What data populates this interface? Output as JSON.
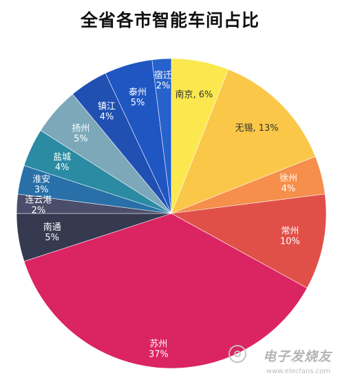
{
  "chart_data": {
    "type": "pie",
    "title": "全省各市智能车间占比",
    "slices": [
      {
        "name": "南京",
        "value": 6,
        "label": "南京, 6%",
        "color": "#FBE84E",
        "text_color": "#333333",
        "lines": [
          "南京, 6%"
        ]
      },
      {
        "name": "无锡",
        "value": 13,
        "label": "无锡, 13%",
        "color": "#FAC748",
        "text_color": "#333333",
        "lines": [
          "无锡, 13%"
        ]
      },
      {
        "name": "徐州",
        "value": 4,
        "label": "徐州 4%",
        "color": "#F58F4B",
        "text_color": "#ffffff",
        "lines": [
          "徐州",
          "4%"
        ]
      },
      {
        "name": "常州",
        "value": 10,
        "label": "常州 10%",
        "color": "#E05049",
        "text_color": "#ffffff",
        "lines": [
          "常州",
          "10%"
        ]
      },
      {
        "name": "苏州",
        "value": 37,
        "label": "苏州 37%",
        "color": "#DB2462",
        "text_color": "#ffffff",
        "lines": [
          "苏州",
          "37%"
        ]
      },
      {
        "name": "南通",
        "value": 5,
        "label": "南通 5%",
        "color": "#363A50",
        "text_color": "#ffffff",
        "lines": [
          "南通",
          "5%"
        ]
      },
      {
        "name": "连云港",
        "value": 2,
        "label": "连云港 2%",
        "color": "#4A4E6B",
        "text_color": "#ffffff",
        "lines": [
          "连云港",
          "2%"
        ]
      },
      {
        "name": "淮安",
        "value": 3,
        "label": "淮安 3%",
        "color": "#2970A8",
        "text_color": "#ffffff",
        "lines": [
          "淮安",
          "3%"
        ]
      },
      {
        "name": "盐城",
        "value": 4,
        "label": "盐城 4%",
        "color": "#2A8BA3",
        "text_color": "#ffffff",
        "lines": [
          "盐城",
          "4%"
        ]
      },
      {
        "name": "扬州",
        "value": 5,
        "label": "扬州 5%",
        "color": "#7CA8B9",
        "text_color": "#ffffff",
        "lines": [
          "扬州",
          "5%"
        ]
      },
      {
        "name": "镇江",
        "value": 4,
        "label": "镇江 4%",
        "color": "#2150B3",
        "text_color": "#ffffff",
        "lines": [
          "镇江",
          "4%"
        ]
      },
      {
        "name": "泰州",
        "value": 5,
        "label": "泰州 5%",
        "color": "#1F56C2",
        "text_color": "#ffffff",
        "lines": [
          "泰州",
          "5%"
        ]
      },
      {
        "name": "宿迁",
        "value": 2,
        "label": "宿迁 2%",
        "color": "#2762CC",
        "text_color": "#ffffff",
        "lines": [
          "宿迁",
          "2%"
        ]
      }
    ],
    "legend": "none"
  },
  "watermark": {
    "main": "电子发烧友",
    "sub": "www.elecfans.com"
  }
}
